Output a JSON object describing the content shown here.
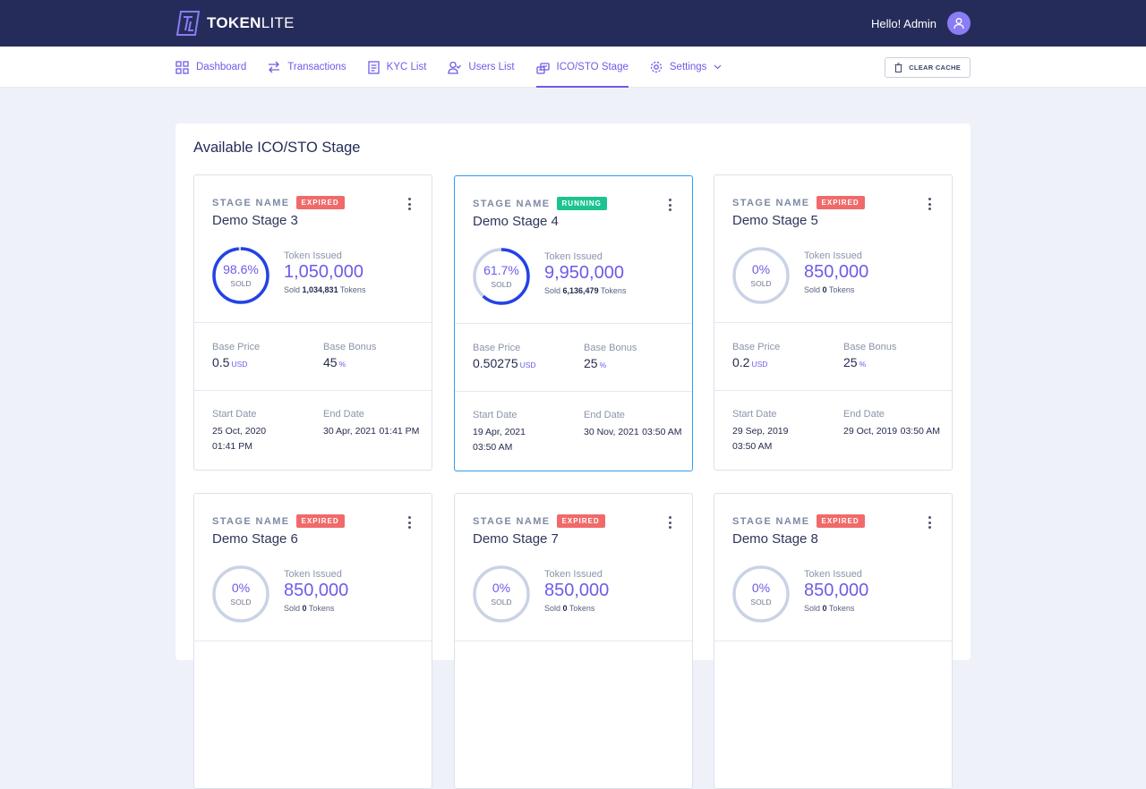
{
  "brand": {
    "name_bold": "TOKEN",
    "name_light": "LITE"
  },
  "header": {
    "greeting": "Hello! Admin"
  },
  "nav": {
    "items": [
      {
        "label": "Dashboard",
        "icon": "dashboard-icon"
      },
      {
        "label": "Transactions",
        "icon": "transactions-icon"
      },
      {
        "label": "KYC List",
        "icon": "document-icon"
      },
      {
        "label": "Users List",
        "icon": "users-icon"
      },
      {
        "label": "ICO/STO Stage",
        "icon": "coins-icon",
        "active": true
      },
      {
        "label": "Settings",
        "icon": "gear-icon"
      }
    ],
    "clear_cache": "CLEAR CACHE"
  },
  "page": {
    "title": "Available ICO/STO Stage"
  },
  "labels": {
    "stage_name": "STAGE NAME",
    "token_issued": "Token Issued",
    "sold_word": "SOLD",
    "sold_prefix": "Sold",
    "tokens_suffix": "Tokens",
    "base_price": "Base Price",
    "base_bonus": "Base Bonus",
    "start_date": "Start Date",
    "end_date": "End Date",
    "currency": "USD",
    "percent": "%"
  },
  "stages": [
    {
      "name": "Demo Stage 3",
      "status": "EXPIRED",
      "sold_pct": "98.6%",
      "sold_fraction": 0.986,
      "token_issued": "1,050,000",
      "tokens_sold": "1,034,831",
      "base_price": "0.5",
      "base_bonus": "45",
      "start_date": "25 Oct, 2020",
      "start_time": "01:41 PM",
      "end_date": "30 Apr, 2021",
      "end_time": "01:41 PM"
    },
    {
      "name": "Demo Stage 4",
      "status": "RUNNING",
      "sold_pct": "61.7%",
      "sold_fraction": 0.617,
      "token_issued": "9,950,000",
      "tokens_sold": "6,136,479",
      "base_price": "0.50275",
      "base_bonus": "25",
      "start_date": "19 Apr, 2021",
      "start_time": "03:50 AM",
      "end_date": "30 Nov, 2021",
      "end_time": "03:50 AM"
    },
    {
      "name": "Demo Stage 5",
      "status": "EXPIRED",
      "sold_pct": "0%",
      "sold_fraction": 0,
      "token_issued": "850,000",
      "tokens_sold": "0",
      "base_price": "0.2",
      "base_bonus": "25",
      "start_date": "29 Sep, 2019",
      "start_time": "03:50 AM",
      "end_date": "29 Oct, 2019",
      "end_time": "03:50 AM"
    },
    {
      "name": "Demo Stage 6",
      "status": "EXPIRED",
      "sold_pct": "0%",
      "sold_fraction": 0,
      "token_issued": "850,000",
      "tokens_sold": "0"
    },
    {
      "name": "Demo Stage 7",
      "status": "EXPIRED",
      "sold_pct": "0%",
      "sold_fraction": 0,
      "token_issued": "850,000",
      "tokens_sold": "0"
    },
    {
      "name": "Demo Stage 8",
      "status": "EXPIRED",
      "sold_pct": "0%",
      "sold_fraction": 0,
      "token_issued": "850,000",
      "tokens_sold": "0"
    }
  ],
  "colors": {
    "accent": "#6c5ce7",
    "ring_fill": "#2342e6",
    "ring_track": "#c9d3e6",
    "expired": "#f06a6a",
    "running": "#1cc390",
    "topbar": "#262c5a"
  }
}
